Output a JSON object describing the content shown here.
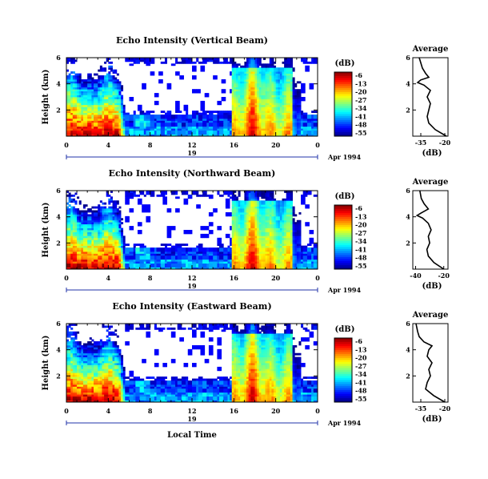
{
  "chart_data": [
    {
      "type": "heatmap",
      "title": "Echo Intensity (Vertical Beam)",
      "ylabel": "Height (km)",
      "yticks": [
        "6",
        "4",
        "2"
      ],
      "xticks": [
        "0",
        "4",
        "8",
        "12",
        "16",
        "20",
        "0"
      ],
      "day_label": "19",
      "date_label": "Apr 1994",
      "xlim": [
        0,
        24
      ],
      "ylim": [
        0,
        6
      ],
      "colorbar": {
        "unit": "(dB)",
        "ticks": [
          "-6",
          "-13",
          "-20",
          "-27",
          "-34",
          "-41",
          "-48",
          "-55"
        ],
        "range": [
          -55,
          -6
        ]
      },
      "average": {
        "title": "Average",
        "xlabel": "(dB)",
        "xticks": [
          "-35",
          "-20"
        ],
        "yticks": [
          "6",
          "4",
          "2"
        ],
        "xlim": [
          -40,
          -18
        ],
        "profile_height": [
          0.0,
          0.5,
          1.0,
          1.5,
          2.0,
          2.5,
          3.0,
          3.5,
          3.9,
          4.1,
          4.3,
          4.5,
          4.8,
          5.2,
          5.6,
          6.0
        ],
        "profile_db": [
          -19,
          -26,
          -30,
          -31,
          -30,
          -29,
          -31,
          -29,
          -33,
          -37,
          -35,
          -30,
          -32,
          -34,
          -35,
          -36
        ]
      }
    },
    {
      "type": "heatmap",
      "title": "Echo Intensity (Northward Beam)",
      "ylabel": "Height (km)",
      "yticks": [
        "6",
        "4",
        "2"
      ],
      "xticks": [
        "0",
        "4",
        "8",
        "12",
        "16",
        "20",
        "0"
      ],
      "day_label": "19",
      "date_label": "Apr 1994",
      "xlim": [
        0,
        24
      ],
      "ylim": [
        0,
        6
      ],
      "colorbar": {
        "unit": "(dB)",
        "ticks": [
          "-6",
          "-13",
          "-20",
          "-27",
          "-34",
          "-41",
          "-48",
          "-55"
        ],
        "range": [
          -55,
          -6
        ]
      },
      "average": {
        "title": "Average",
        "xlabel": "(dB)",
        "xticks": [
          "-40",
          "-20"
        ],
        "yticks": [
          "6",
          "4",
          "2"
        ],
        "xlim": [
          -42,
          -17
        ],
        "profile_height": [
          0.0,
          0.5,
          1.0,
          1.5,
          2.0,
          2.5,
          3.0,
          3.5,
          3.9,
          4.1,
          4.3,
          4.6,
          5.0,
          5.4,
          6.0
        ],
        "profile_db": [
          -20,
          -27,
          -31,
          -32,
          -30,
          -31,
          -29,
          -31,
          -35,
          -39,
          -36,
          -31,
          -34,
          -36,
          -37
        ]
      }
    },
    {
      "type": "heatmap",
      "title": "Echo Intensity (Eastward Beam)",
      "ylabel": "Height (km)",
      "yticks": [
        "6",
        "4",
        "2"
      ],
      "xticks": [
        "0",
        "4",
        "8",
        "12",
        "16",
        "20",
        "0"
      ],
      "day_label": "19",
      "date_label": "Apr 1994",
      "xlabel": "Local Time",
      "xlim": [
        0,
        24
      ],
      "ylim": [
        0,
        6
      ],
      "colorbar": {
        "unit": "(dB)",
        "ticks": [
          "-6",
          "-13",
          "-20",
          "-27",
          "-34",
          "-41",
          "-48",
          "-55"
        ],
        "range": [
          -55,
          -6
        ]
      },
      "average": {
        "title": "Average",
        "xlabel": "(dB)",
        "xticks": [
          "-35",
          "-20"
        ],
        "yticks": [
          "6",
          "4",
          "2"
        ],
        "xlim": [
          -40,
          -18
        ],
        "profile_height": [
          0.0,
          0.5,
          1.0,
          1.5,
          2.0,
          2.5,
          3.0,
          3.5,
          4.0,
          4.3,
          4.6,
          5.0,
          5.4,
          6.0
        ],
        "profile_db": [
          -20,
          -27,
          -32,
          -31,
          -29,
          -30,
          -28,
          -31,
          -30,
          -28,
          -33,
          -36,
          -37,
          -38
        ]
      }
    }
  ]
}
